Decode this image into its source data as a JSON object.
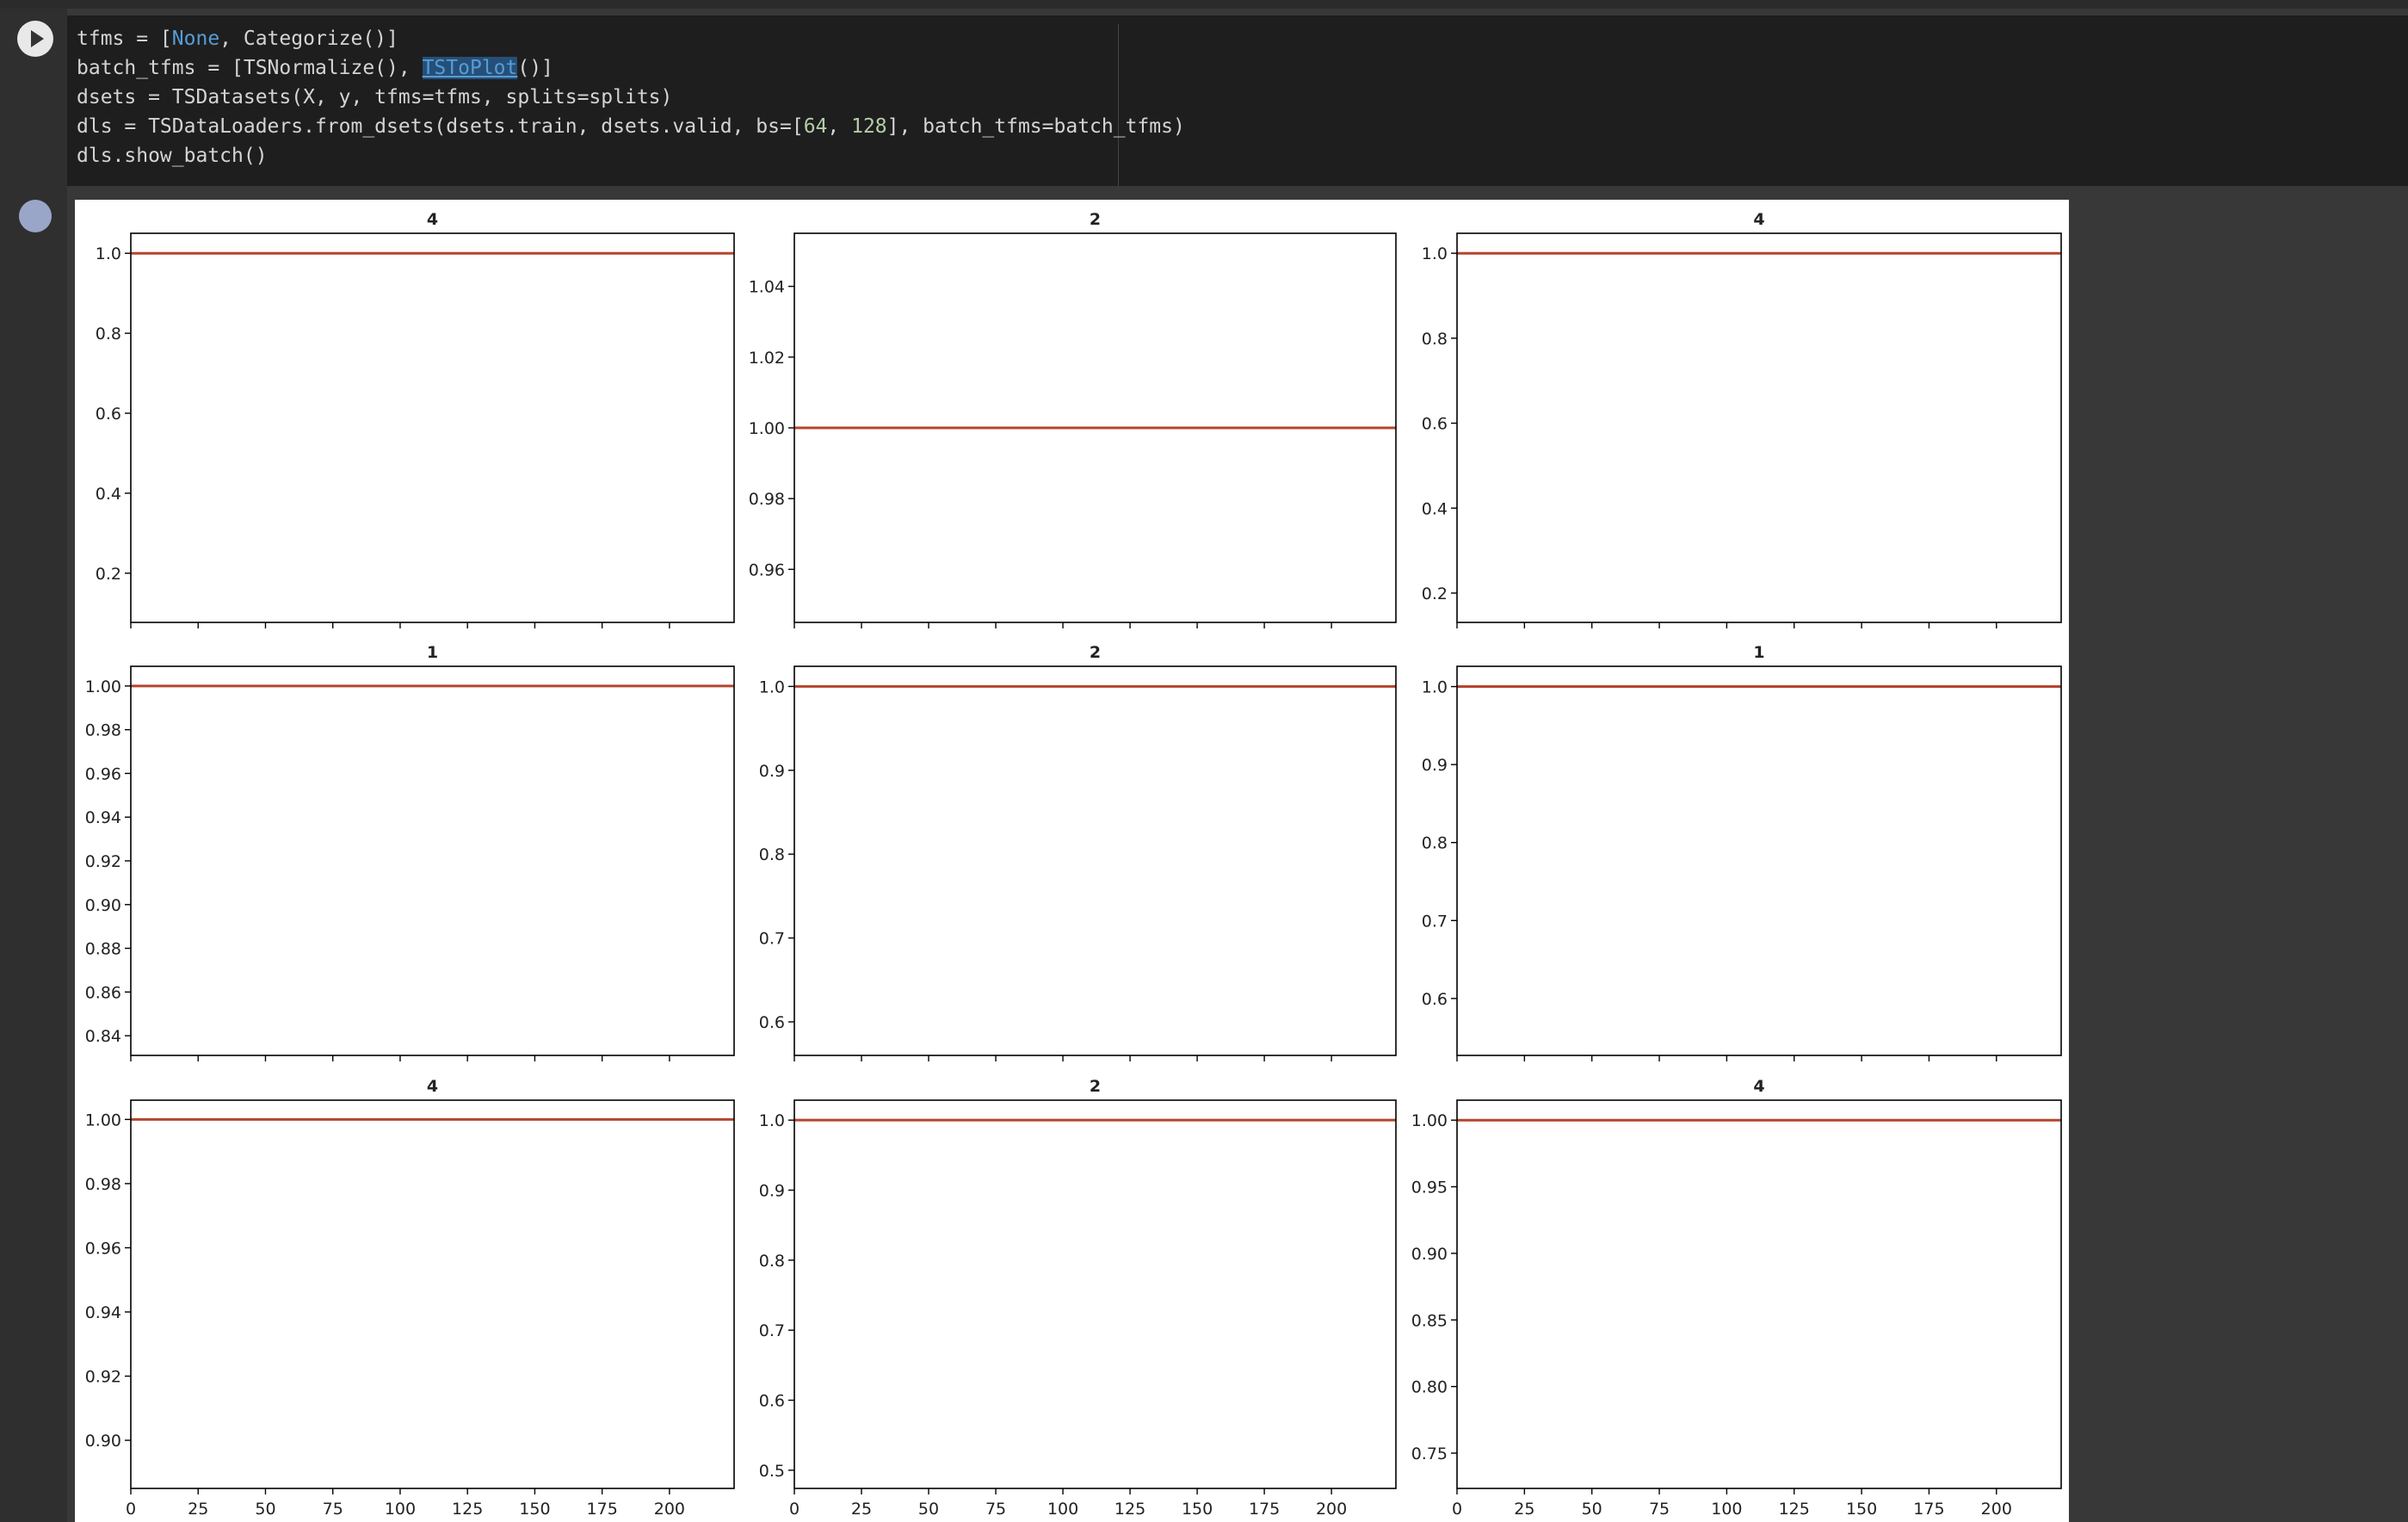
{
  "code": {
    "lines": [
      [
        {
          "text": "tfms = [",
          "kind": "plain"
        },
        {
          "text": "None",
          "kind": "keyword"
        },
        {
          "text": ", Categorize()]",
          "kind": "plain"
        }
      ],
      [
        {
          "text": "batch_tfms = [TSNormalize(), ",
          "kind": "plain"
        },
        {
          "text": "TSToPlot",
          "kind": "selected"
        },
        {
          "text": "()]",
          "kind": "plain"
        }
      ],
      [
        {
          "text": "dsets = TSDatasets(X, y, tfms=tfms, splits=splits)",
          "kind": "plain"
        }
      ],
      [
        {
          "text": "dls = TSDataLoaders.from_dsets(dsets.train, dsets.valid, bs=[",
          "kind": "plain"
        },
        {
          "text": "64",
          "kind": "number"
        },
        {
          "text": ", ",
          "kind": "plain"
        },
        {
          "text": "128",
          "kind": "number"
        },
        {
          "text": "], batch_tfms=batch_tfms)",
          "kind": "plain"
        }
      ],
      [
        {
          "text": "dls.show_batch()",
          "kind": "plain"
        }
      ]
    ]
  },
  "chart_data": [
    {
      "type": "line",
      "title": "4",
      "x": [
        0,
        224
      ],
      "values": [
        1,
        1
      ],
      "color": "#b5452f",
      "xlim": [
        0,
        224
      ],
      "xticks": [
        0,
        25,
        50,
        75,
        100,
        125,
        150,
        175,
        200
      ],
      "ylim": [
        0.077,
        1.05
      ],
      "yticks": [
        0.2,
        0.4,
        0.6,
        0.8,
        {
          "value": 1,
          "label": "1.0"
        }
      ]
    },
    {
      "type": "line",
      "title": "2",
      "x": [
        0,
        224
      ],
      "values": [
        1,
        1
      ],
      "color": "#b5452f",
      "xlim": [
        0,
        224
      ],
      "xticks": [
        0,
        25,
        50,
        75,
        100,
        125,
        150,
        175,
        200
      ],
      "ylim": [
        0.945,
        1.055
      ],
      "yticks": [
        0.96,
        0.98,
        {
          "value": 1,
          "label": "1.00"
        },
        1.02,
        1.04
      ]
    },
    {
      "type": "line",
      "title": "4",
      "x": [
        0,
        224
      ],
      "values": [
        1,
        1
      ],
      "color": "#b5452f",
      "xlim": [
        0,
        224
      ],
      "xticks": [
        0,
        25,
        50,
        75,
        100,
        125,
        150,
        175,
        200
      ],
      "ylim": [
        0.131,
        1.047
      ],
      "yticks": [
        0.2,
        0.4,
        0.6,
        0.8,
        {
          "value": 1,
          "label": "1.0"
        }
      ]
    },
    {
      "type": "line",
      "title": "1",
      "x": [
        0,
        224
      ],
      "values": [
        1,
        1
      ],
      "color": "#b5452f",
      "xlim": [
        0,
        224
      ],
      "xticks": [
        0,
        25,
        50,
        75,
        100,
        125,
        150,
        175,
        200
      ],
      "ylim": [
        0.831,
        1.009
      ],
      "yticks": [
        0.84,
        0.86,
        0.88,
        {
          "value": 0.9,
          "label": "0.90"
        },
        0.92,
        0.94,
        0.96,
        0.98,
        {
          "value": 1,
          "label": "1.00"
        }
      ]
    },
    {
      "type": "line",
      "title": "2",
      "x": [
        0,
        224
      ],
      "values": [
        1,
        1
      ],
      "color": "#b5452f",
      "xlim": [
        0,
        224
      ],
      "xticks": [
        0,
        25,
        50,
        75,
        100,
        125,
        150,
        175,
        200
      ],
      "ylim": [
        0.56,
        1.024
      ],
      "yticks": [
        0.6,
        0.7,
        0.8,
        0.9,
        {
          "value": 1,
          "label": "1.0"
        }
      ]
    },
    {
      "type": "line",
      "title": "1",
      "x": [
        0,
        224
      ],
      "values": [
        1,
        1
      ],
      "color": "#b5452f",
      "xlim": [
        0,
        224
      ],
      "xticks": [
        0,
        25,
        50,
        75,
        100,
        125,
        150,
        175,
        200
      ],
      "ylim": [
        0.527,
        1.026
      ],
      "yticks": [
        0.6,
        0.7,
        0.8,
        0.9,
        {
          "value": 1,
          "label": "1.0"
        }
      ]
    },
    {
      "type": "line",
      "title": "4",
      "x": [
        0,
        224
      ],
      "values": [
        1,
        1
      ],
      "color": "#b5452f",
      "xlim": [
        0,
        224
      ],
      "xticks": [
        0,
        25,
        50,
        75,
        100,
        125,
        150,
        175,
        200
      ],
      "ylim": [
        0.885,
        1.006
      ],
      "yticks": [
        {
          "value": 0.9,
          "label": "0.90"
        },
        0.92,
        0.94,
        0.96,
        0.98,
        {
          "value": 1,
          "label": "1.00"
        }
      ]
    },
    {
      "type": "line",
      "title": "2",
      "x": [
        0,
        224
      ],
      "values": [
        1,
        1
      ],
      "color": "#b5452f",
      "xlim": [
        0,
        224
      ],
      "xticks": [
        0,
        25,
        50,
        75,
        100,
        125,
        150,
        175,
        200
      ],
      "ylim": [
        0.474,
        1.0285
      ],
      "yticks": [
        0.5,
        0.6,
        0.7,
        0.8,
        0.9,
        {
          "value": 1,
          "label": "1.0"
        }
      ]
    },
    {
      "type": "line",
      "title": "4",
      "x": [
        0,
        224
      ],
      "values": [
        1,
        1
      ],
      "color": "#b5452f",
      "xlim": [
        0,
        224
      ],
      "xticks": [
        0,
        25,
        50,
        75,
        100,
        125,
        150,
        175,
        200
      ],
      "ylim": [
        0.7235,
        1.015
      ],
      "yticks": [
        0.75,
        {
          "value": 0.8,
          "label": "0.80"
        },
        0.85,
        {
          "value": 0.9,
          "label": "0.90"
        },
        0.95,
        {
          "value": 1,
          "label": "1.00"
        }
      ]
    }
  ]
}
